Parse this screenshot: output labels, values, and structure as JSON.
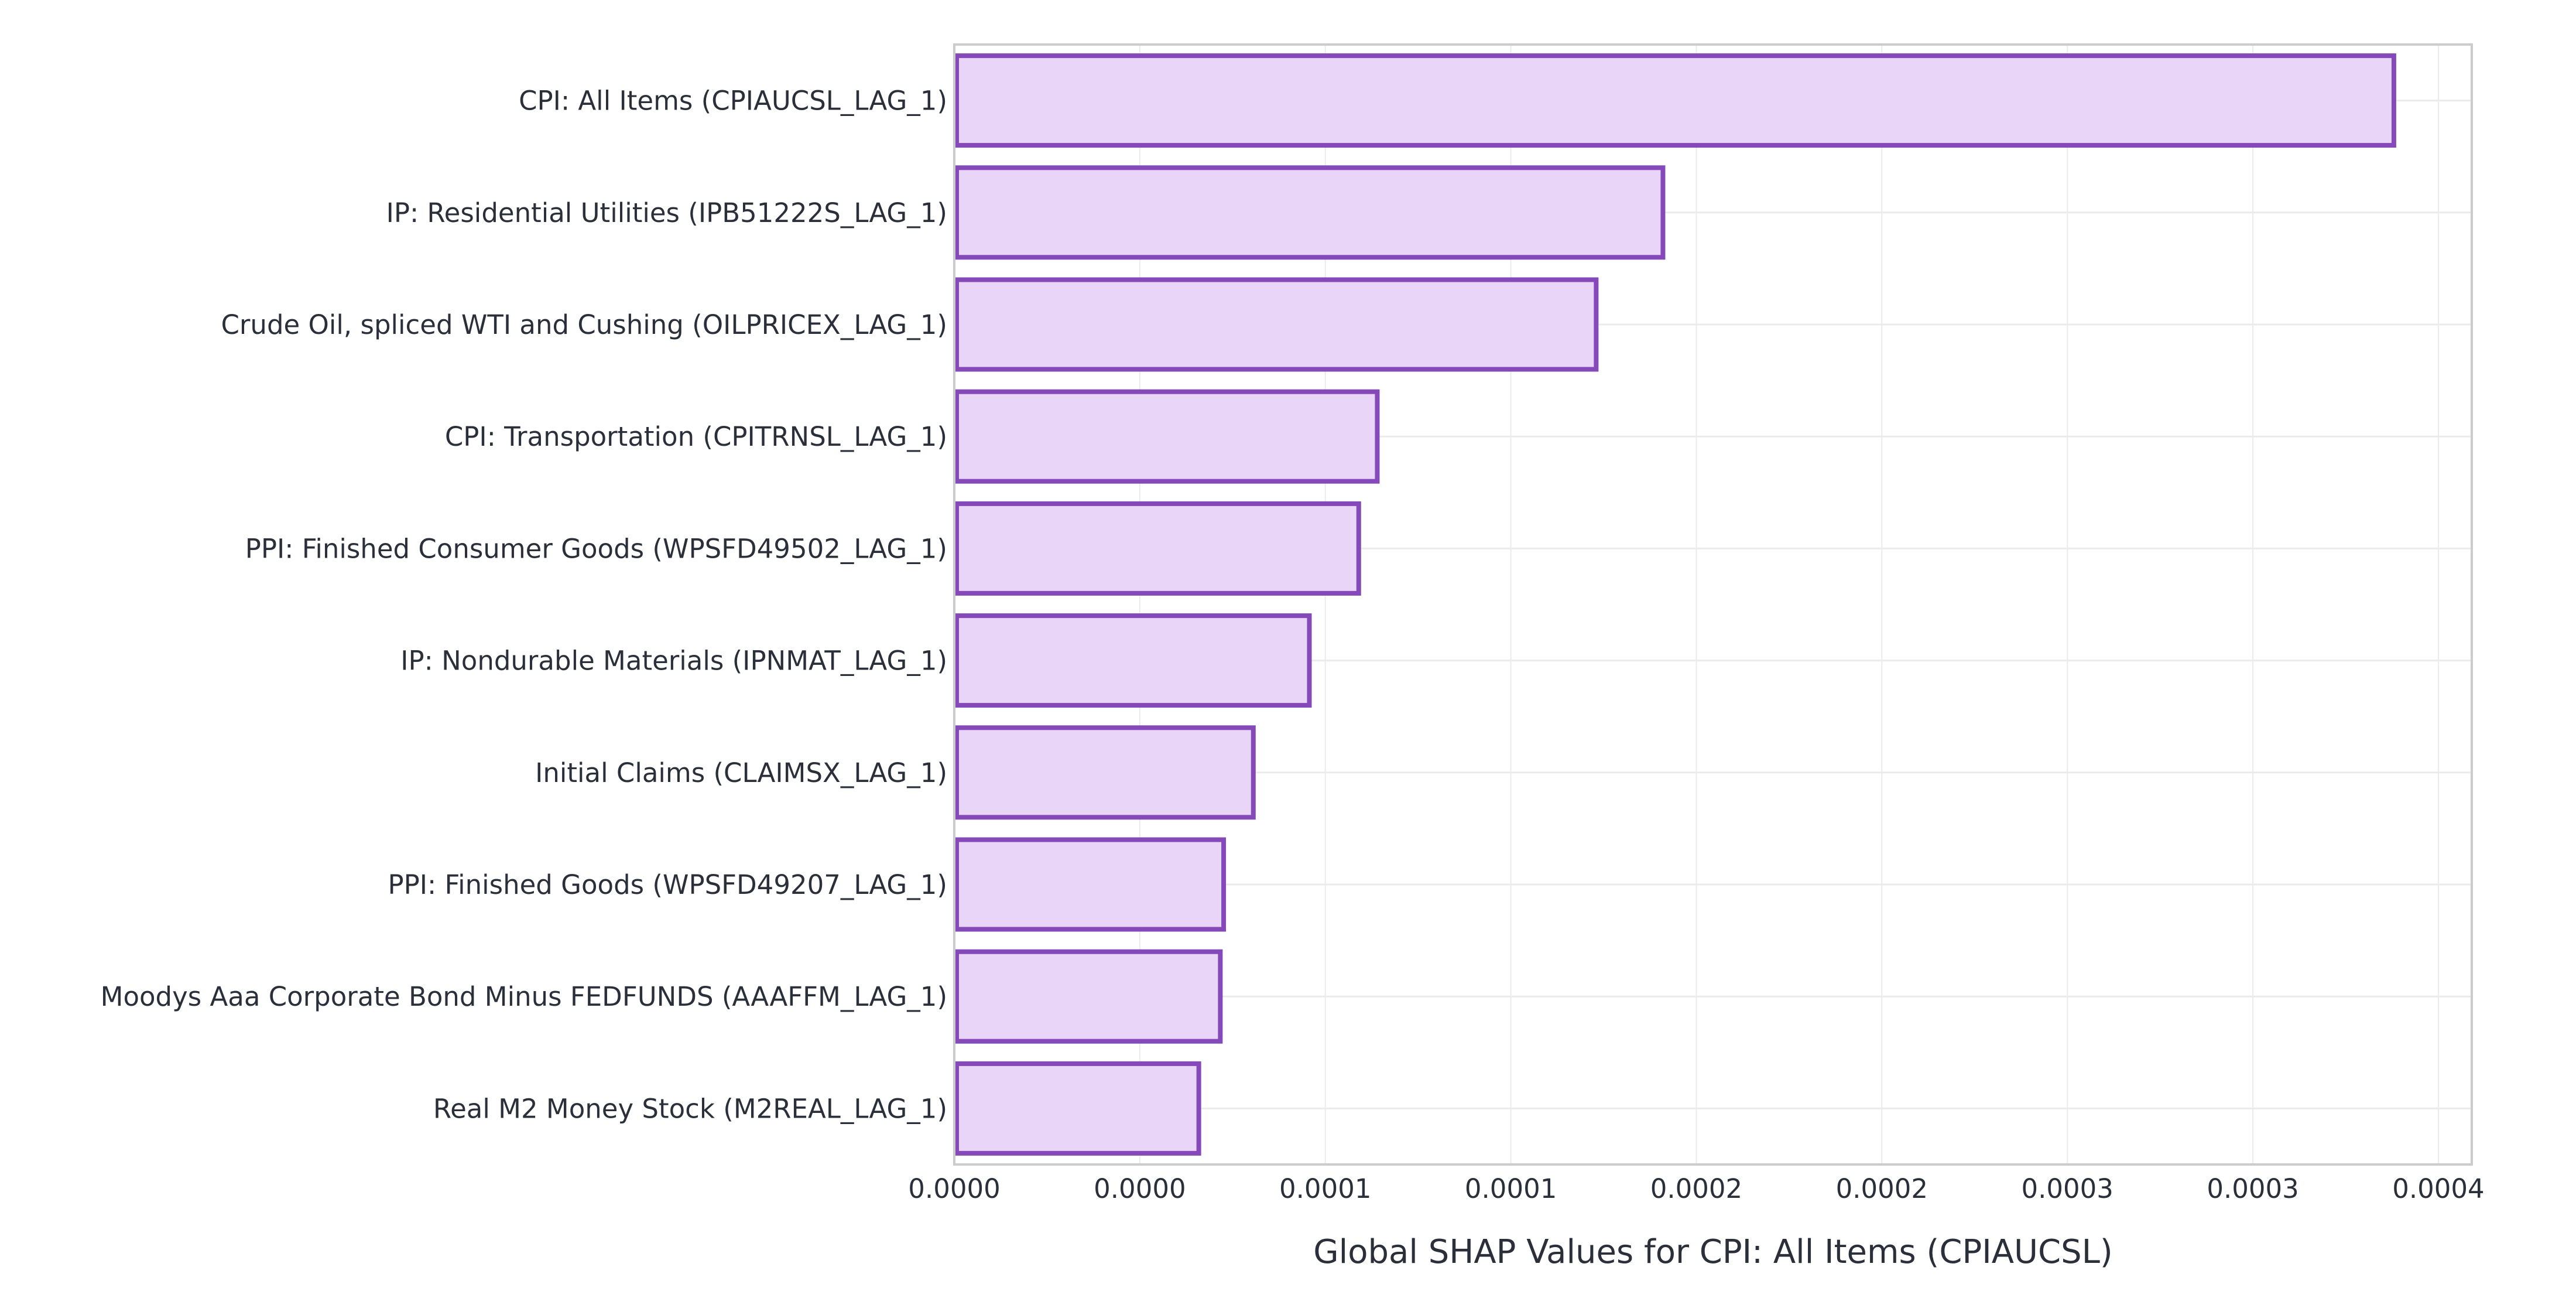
{
  "chart_data": {
    "type": "bar",
    "orientation": "horizontal",
    "title": "",
    "xlabel": "Global SHAP Values for CPI: All Items (CPIAUCSL)",
    "ylabel": "",
    "categories": [
      "CPI: All Items (CPIAUCSL_LAG_1)",
      "IP: Residential Utilities (IPB51222S_LAG_1)",
      "Crude Oil, spliced WTI and Cushing (OILPRICEX_LAG_1)",
      "CPI: Transportation (CPITRNSL_LAG_1)",
      "PPI: Finished Consumer Goods (WPSFD49502_LAG_1)",
      "IP: Nondurable Materials (IPNMAT_LAG_1)",
      "Initial Claims (CLAIMSX_LAG_1)",
      "PPI: Finished Goods (WPSFD49207_LAG_1)",
      "Moodys Aaa Corporate Bond Minus FEDFUNDS (AAAFFM_LAG_1)",
      "Real M2 Money Stock (M2REAL_LAG_1)"
    ],
    "values": [
      0.000388,
      0.000191,
      0.000173,
      0.000114,
      0.000109,
      9.57e-05,
      8.06e-05,
      7.26e-05,
      7.17e-05,
      6.59e-05
    ],
    "xlim": [
      0,
      0.000409
    ],
    "xticks": [
      0,
      5e-05,
      0.0001,
      0.00015,
      0.0002,
      0.00025,
      0.0003,
      0.00035,
      0.0004
    ],
    "xtick_labels": [
      "0.0000",
      "0.0000",
      "0.0001",
      "0.0001",
      "0.0002",
      "0.0002",
      "0.0003",
      "0.0003",
      "0.0004"
    ],
    "grid": true,
    "colors": {
      "bar_fill": "#e9d5f7",
      "bar_stroke": "#8549b9",
      "grid": "#ebebeb",
      "axis": "#cccccc"
    }
  }
}
